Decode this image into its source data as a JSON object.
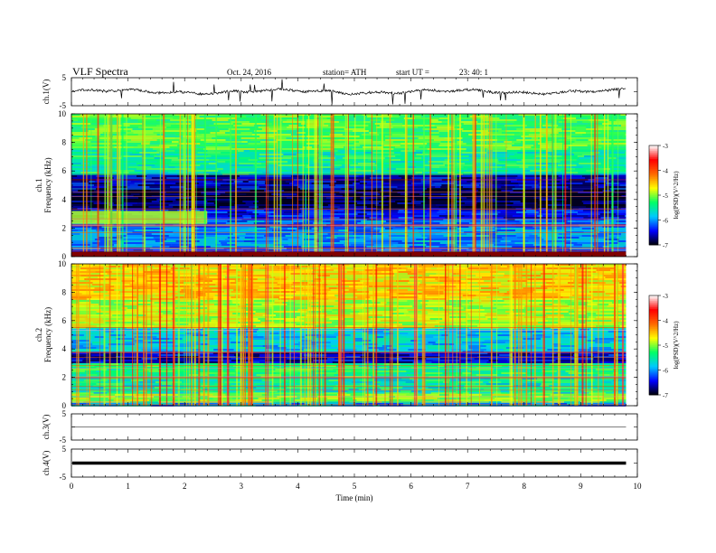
{
  "header": {
    "title": "VLF Spectra",
    "date": "Oct. 24, 2016",
    "station": "station= ATH",
    "start_label": "start  UT  =",
    "start_time": "23: 40: 1"
  },
  "colorbar": {
    "label": "log(PSD)(V^2/Hz)",
    "ticks": [
      "-3",
      "-4",
      "-5",
      "-6",
      "-7"
    ],
    "range": [
      -7,
      -3
    ],
    "colors": [
      "#000000",
      "#0000ff",
      "#00c8ff",
      "#00ff66",
      "#ffff00",
      "#ff6a00",
      "#ff0000",
      "#ffffff"
    ]
  },
  "chart_data": [
    {
      "type": "line",
      "panel": "ch1-waveform",
      "ylabel": "ch.1(V)",
      "ylim": [
        -5,
        5
      ],
      "yticks": [
        "5",
        "-5"
      ],
      "xlim": [
        0,
        10
      ],
      "baseline": 0,
      "color": "#000000"
    },
    {
      "type": "heatmap",
      "panel": "ch1-spectrogram",
      "ylabel_channel": "ch.1",
      "ylabel": "Frequency  (kHz)",
      "ylim": [
        0,
        10
      ],
      "yticks": [
        "0",
        "2",
        "4",
        "6",
        "8",
        "10"
      ],
      "xlim": [
        0,
        10
      ],
      "data_end_min": 9.8,
      "bands": [
        {
          "f": [
            0.0,
            0.35
          ],
          "level": -4.2
        },
        {
          "f": [
            0.35,
            0.7
          ],
          "level": -6.3
        },
        {
          "f": [
            0.7,
            2.0
          ],
          "level": -6.0
        },
        {
          "f": [
            2.0,
            2.6
          ],
          "level": -6.1
        },
        {
          "f": [
            2.6,
            3.4
          ],
          "level": -6.4
        },
        {
          "f": [
            3.4,
            4.8
          ],
          "level": -6.85
        },
        {
          "f": [
            4.8,
            5.8
          ],
          "level": -6.6
        },
        {
          "f": [
            5.8,
            7.5
          ],
          "level": -5.45
        },
        {
          "f": [
            7.5,
            10.0
          ],
          "level": -5.15
        }
      ],
      "features": [
        {
          "name": "emission near 2.8 kHz",
          "t": [
            0.0,
            2.4
          ],
          "f": [
            2.3,
            3.2
          ],
          "level": -4.9
        }
      ]
    },
    {
      "type": "heatmap",
      "panel": "ch2-spectrogram",
      "ylabel_channel": "ch.2",
      "ylabel": "Frequency  (kHz)",
      "ylim": [
        0,
        10
      ],
      "yticks": [
        "0",
        "2",
        "4",
        "6",
        "8",
        "10"
      ],
      "xlim": [
        0,
        10
      ],
      "data_end_min": 9.8,
      "bands": [
        {
          "f": [
            0.0,
            0.3
          ],
          "level": -6.0
        },
        {
          "f": [
            0.3,
            0.9
          ],
          "level": -5.0
        },
        {
          "f": [
            0.9,
            2.0
          ],
          "level": -5.5
        },
        {
          "f": [
            2.0,
            3.0
          ],
          "level": -5.35
        },
        {
          "f": [
            3.0,
            3.8
          ],
          "level": -6.55
        },
        {
          "f": [
            3.8,
            5.5
          ],
          "level": -5.8
        },
        {
          "f": [
            5.5,
            7.5
          ],
          "level": -4.9
        },
        {
          "f": [
            7.5,
            10.0
          ],
          "level": -4.55
        }
      ],
      "features": []
    },
    {
      "type": "line",
      "panel": "ch3-waveform",
      "ylabel": "ch.3(V)",
      "ylim": [
        -5,
        5
      ],
      "yticks": [
        "5",
        "-5"
      ],
      "xlim": [
        0,
        10
      ],
      "baseline": 0,
      "color": "#000000"
    },
    {
      "type": "line",
      "panel": "ch4-waveform",
      "ylabel": "ch.4(V)",
      "ylim": [
        -5,
        5
      ],
      "yticks": [
        "5",
        "-5"
      ],
      "xlim": [
        0,
        10
      ],
      "baseline": 0,
      "color": "#000000"
    }
  ],
  "xaxis": {
    "label": "Time  (min)",
    "ticks": [
      "0",
      "1",
      "2",
      "3",
      "4",
      "5",
      "6",
      "7",
      "8",
      "9",
      "10"
    ],
    "range": [
      0,
      10
    ]
  }
}
